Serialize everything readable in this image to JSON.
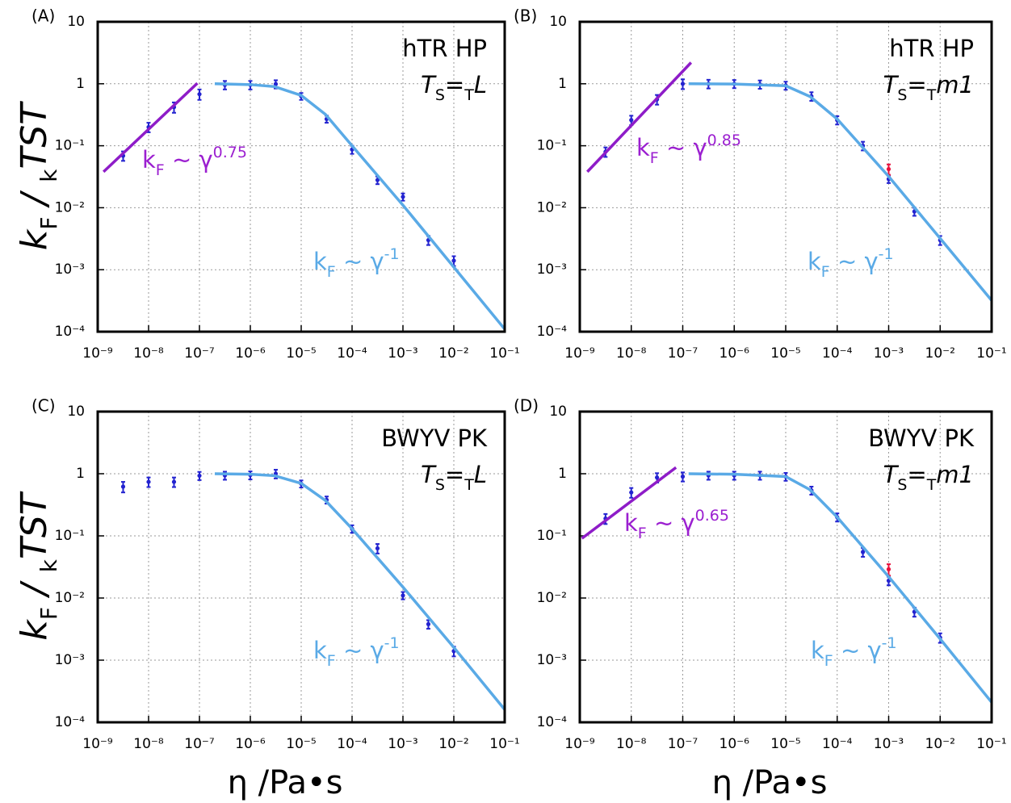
{
  "chart_data": [
    {
      "type": "scatter",
      "label": "(A)",
      "title": "hTR HP",
      "subtitle": [
        "T",
        "S",
        "=",
        "T",
        "L"
      ],
      "xscale": "log",
      "yscale": "log",
      "grid": true,
      "xlim": [
        1e-09,
        0.1
      ],
      "ylim": [
        0.0001,
        10
      ],
      "xticks": [
        {
          "value": 1e-09,
          "label": "10⁻⁹"
        },
        {
          "value": 1e-08,
          "label": "10⁻⁸"
        },
        {
          "value": 1e-07,
          "label": "10⁻⁷"
        },
        {
          "value": 1e-06,
          "label": "10⁻⁶"
        },
        {
          "value": 1e-05,
          "label": "10⁻⁵"
        },
        {
          "value": 0.0001,
          "label": "10⁻⁴"
        },
        {
          "value": 0.001,
          "label": "10⁻³"
        },
        {
          "value": 0.01,
          "label": "10⁻²"
        },
        {
          "value": 0.1,
          "label": "10⁻¹"
        }
      ],
      "yticks": [
        {
          "value": 0.0001,
          "label": "10⁻⁴"
        },
        {
          "value": 0.001,
          "label": "10⁻³"
        },
        {
          "value": 0.01,
          "label": "10⁻²"
        },
        {
          "value": 0.1,
          "label": "10⁻¹"
        },
        1,
        10
      ],
      "ylabel": [
        "k",
        "F",
        " / ",
        "k",
        "TST"
      ],
      "series": [
        {
          "kind": "points",
          "color": "#2323d0",
          "x": [
            3.16e-09,
            1e-08,
            3.16e-08,
            1e-07,
            3.16e-07,
            1e-06,
            3.16e-06,
            1e-05,
            3.16e-05,
            0.0001,
            0.000316,
            0.001,
            0.00316,
            0.01
          ],
          "values": [
            0.069,
            0.2,
            0.42,
            0.68,
            0.96,
            0.96,
            0.99,
            0.63,
            0.27,
            0.087,
            0.028,
            0.015,
            0.003,
            0.0014
          ],
          "errors": [
            0.012,
            0.035,
            0.08,
            0.13,
            0.15,
            0.15,
            0.15,
            0.08,
            0.035,
            0.013,
            0.004,
            0.002,
            0.0005,
            0.00025
          ]
        },
        {
          "kind": "line",
          "color": "#8e1cc8",
          "x": [
            1.3e-09,
            9.1e-08
          ],
          "values": [
            0.038,
            1.02
          ]
        },
        {
          "kind": "line",
          "color": "#5aaae6",
          "x": [
            2e-07,
            1e-06,
            3e-06,
            1e-05,
            3e-05,
            0.0001,
            0.001,
            0.01,
            0.1
          ],
          "values": [
            1,
            0.97,
            0.9,
            0.65,
            0.32,
            0.1,
            0.011,
            0.0011,
            0.00011
          ]
        }
      ],
      "annotations": [
        {
          "parts": [
            "k",
            "F",
            " ~ γ",
            "0.75"
          ],
          "color": "#9b1fd0"
        },
        {
          "parts": [
            "k",
            "F",
            " ~ γ",
            "-1"
          ],
          "color": "#5aaae6"
        }
      ]
    },
    {
      "type": "scatter",
      "label": "(B)",
      "title": "hTR HP",
      "subtitle": [
        "T",
        "S",
        "=",
        "T",
        "m1"
      ],
      "xscale": "log",
      "yscale": "log",
      "grid": true,
      "xlim": [
        1e-09,
        0.1
      ],
      "ylim": [
        0.0001,
        10
      ],
      "xticks": [
        {
          "value": 1e-09,
          "label": "10⁻⁹"
        },
        {
          "value": 1e-08,
          "label": "10⁻⁸"
        },
        {
          "value": 1e-07,
          "label": "10⁻⁷"
        },
        {
          "value": 1e-06,
          "label": "10⁻⁶"
        },
        {
          "value": 1e-05,
          "label": "10⁻⁵"
        },
        {
          "value": 0.0001,
          "label": "10⁻⁴"
        },
        {
          "value": 0.001,
          "label": "10⁻³"
        },
        {
          "value": 0.01,
          "label": "10⁻²"
        },
        {
          "value": 0.1,
          "label": "10⁻¹"
        }
      ],
      "yticks": [
        {
          "value": 0.0001,
          "label": "10⁻⁴"
        },
        {
          "value": 0.001,
          "label": "10⁻³"
        },
        {
          "value": 0.01,
          "label": "10⁻²"
        },
        {
          "value": 0.1,
          "label": "10⁻¹"
        },
        1,
        10
      ],
      "series": [
        {
          "kind": "points",
          "color": "#2323d0",
          "x": [
            3.16e-09,
            1e-08,
            3.16e-08,
            1e-07,
            3.16e-07,
            1e-06,
            3.16e-06,
            1e-05,
            3.16e-05,
            0.0001,
            0.000316,
            0.001,
            0.00316,
            0.01
          ],
          "values": [
            0.08,
            0.26,
            0.56,
            1.0,
            1.0,
            1.0,
            0.98,
            0.94,
            0.63,
            0.26,
            0.1,
            0.029,
            0.0087,
            0.003
          ],
          "errors": [
            0.014,
            0.045,
            0.1,
            0.18,
            0.16,
            0.15,
            0.15,
            0.14,
            0.1,
            0.04,
            0.016,
            0.004,
            0.0013,
            0.0005
          ]
        },
        {
          "kind": "points",
          "color": "#e8103c",
          "x": [
            0.001
          ],
          "values": [
            0.042
          ],
          "errors": [
            0.008
          ]
        },
        {
          "kind": "line",
          "color": "#8e1cc8",
          "x": [
            1.4e-09,
            1.45e-07
          ],
          "values": [
            0.038,
            2.2
          ]
        },
        {
          "kind": "line",
          "color": "#5aaae6",
          "x": [
            1.3e-07,
            1e-06,
            1e-05,
            3e-05,
            0.0001,
            0.001,
            0.01,
            0.1
          ],
          "values": [
            1,
            0.99,
            0.93,
            0.62,
            0.27,
            0.032,
            0.0032,
            0.00032
          ]
        }
      ],
      "annotations": [
        {
          "parts": [
            "k",
            "F",
            " ~ γ",
            "0.85"
          ],
          "color": "#9b1fd0"
        },
        {
          "parts": [
            "k",
            "F",
            " ~ γ",
            "-1"
          ],
          "color": "#5aaae6"
        }
      ]
    },
    {
      "type": "scatter",
      "label": "(C)",
      "title": "BWYV PK",
      "subtitle": [
        "T",
        "S",
        "=",
        "T",
        "L"
      ],
      "xscale": "log",
      "yscale": "log",
      "grid": true,
      "xlim": [
        1e-09,
        0.1
      ],
      "ylim": [
        0.0001,
        10
      ],
      "xticks": [
        {
          "value": 1e-09,
          "label": "10⁻⁹"
        },
        {
          "value": 1e-08,
          "label": "10⁻⁸"
        },
        {
          "value": 1e-07,
          "label": "10⁻⁷"
        },
        {
          "value": 1e-06,
          "label": "10⁻⁶"
        },
        {
          "value": 1e-05,
          "label": "10⁻⁵"
        },
        {
          "value": 0.0001,
          "label": "10⁻⁴"
        },
        {
          "value": 0.001,
          "label": "10⁻³"
        },
        {
          "value": 0.01,
          "label": "10⁻²"
        },
        {
          "value": 0.1,
          "label": "10⁻¹"
        }
      ],
      "yticks": [
        {
          "value": 0.0001,
          "label": "10⁻⁴"
        },
        {
          "value": 0.001,
          "label": "10⁻³"
        },
        {
          "value": 0.01,
          "label": "10⁻²"
        },
        {
          "value": 0.1,
          "label": "10⁻¹"
        },
        1,
        10
      ],
      "ylabel": [
        "k",
        "F",
        " / ",
        "k",
        "TST"
      ],
      "xlabel": "η /Pa•s",
      "series": [
        {
          "kind": "points",
          "color": "#2323d0",
          "x": [
            3.16e-09,
            1e-08,
            3.16e-08,
            1e-07,
            3.16e-07,
            1e-06,
            3.16e-06,
            1e-05,
            3.16e-05,
            0.0001,
            0.000316,
            0.001,
            0.00316,
            0.01
          ],
          "values": [
            0.62,
            0.74,
            0.74,
            0.93,
            0.94,
            0.95,
            1.0,
            0.69,
            0.38,
            0.13,
            0.063,
            0.011,
            0.0038,
            0.0014
          ],
          "errors": [
            0.12,
            0.13,
            0.13,
            0.14,
            0.14,
            0.14,
            0.16,
            0.09,
            0.05,
            0.018,
            0.011,
            0.0015,
            0.0006,
            0.00025
          ]
        },
        {
          "kind": "line",
          "color": "#5aaae6",
          "x": [
            2e-07,
            1e-06,
            3e-06,
            1e-05,
            3e-05,
            0.0001,
            0.001,
            0.01,
            0.1
          ],
          "values": [
            1,
            0.98,
            0.93,
            0.7,
            0.37,
            0.13,
            0.015,
            0.0016,
            0.00016
          ]
        }
      ],
      "annotations": [
        {
          "parts": [
            "k",
            "F",
            " ~ γ",
            "-1"
          ],
          "color": "#5aaae6"
        }
      ]
    },
    {
      "type": "scatter",
      "label": "(D)",
      "title": "BWYV PK",
      "subtitle": [
        "T",
        "S",
        "=",
        "T",
        "m1"
      ],
      "xscale": "log",
      "yscale": "log",
      "grid": true,
      "xlim": [
        1e-09,
        0.1
      ],
      "ylim": [
        0.0001,
        10
      ],
      "xticks": [
        {
          "value": 1e-09,
          "label": "10⁻⁹"
        },
        {
          "value": 1e-08,
          "label": "10⁻⁸"
        },
        {
          "value": 1e-07,
          "label": "10⁻⁷"
        },
        {
          "value": 1e-06,
          "label": "10⁻⁶"
        },
        {
          "value": 1e-05,
          "label": "10⁻⁵"
        },
        {
          "value": 0.0001,
          "label": "10⁻⁴"
        },
        {
          "value": 0.001,
          "label": "10⁻³"
        },
        {
          "value": 0.01,
          "label": "10⁻²"
        },
        {
          "value": 0.1,
          "label": "10⁻¹"
        }
      ],
      "yticks": [
        {
          "value": 0.0001,
          "label": "10⁻⁴"
        },
        {
          "value": 0.001,
          "label": "10⁻³"
        },
        {
          "value": 0.01,
          "label": "10⁻²"
        },
        {
          "value": 0.1,
          "label": "10⁻¹"
        },
        1,
        10
      ],
      "xlabel": "η /Pa•s",
      "series": [
        {
          "kind": "points",
          "color": "#2323d0",
          "x": [
            3.16e-09,
            1e-08,
            3.16e-08,
            1e-07,
            3.16e-07,
            1e-06,
            3.16e-06,
            1e-05,
            3.16e-05,
            0.0001,
            0.000316,
            0.001,
            0.00316,
            0.01
          ],
          "values": [
            0.19,
            0.5,
            0.87,
            0.9,
            0.94,
            0.94,
            0.94,
            0.9,
            0.54,
            0.2,
            0.055,
            0.019,
            0.006,
            0.0023
          ],
          "errors": [
            0.035,
            0.09,
            0.15,
            0.15,
            0.14,
            0.14,
            0.14,
            0.13,
            0.08,
            0.03,
            0.009,
            0.003,
            0.001,
            0.0004
          ]
        },
        {
          "kind": "points",
          "color": "#e8103c",
          "x": [
            0.001
          ],
          "values": [
            0.029
          ],
          "errors": [
            0.006
          ]
        },
        {
          "kind": "line",
          "color": "#8e1cc8",
          "x": [
            1.1e-09,
            7.4e-08
          ],
          "values": [
            0.091,
            1.26
          ]
        },
        {
          "kind": "line",
          "color": "#5aaae6",
          "x": [
            1.3e-07,
            1e-06,
            1e-05,
            3e-05,
            0.0001,
            0.001,
            0.01,
            0.1
          ],
          "values": [
            1,
            0.98,
            0.9,
            0.55,
            0.2,
            0.022,
            0.0022,
            0.00021
          ]
        }
      ],
      "annotations": [
        {
          "parts": [
            "k",
            "F",
            " ~ γ",
            "0.65"
          ],
          "color": "#9b1fd0"
        },
        {
          "parts": [
            "k",
            "F",
            " ~ γ",
            "-1"
          ],
          "color": "#5aaae6"
        }
      ]
    }
  ]
}
